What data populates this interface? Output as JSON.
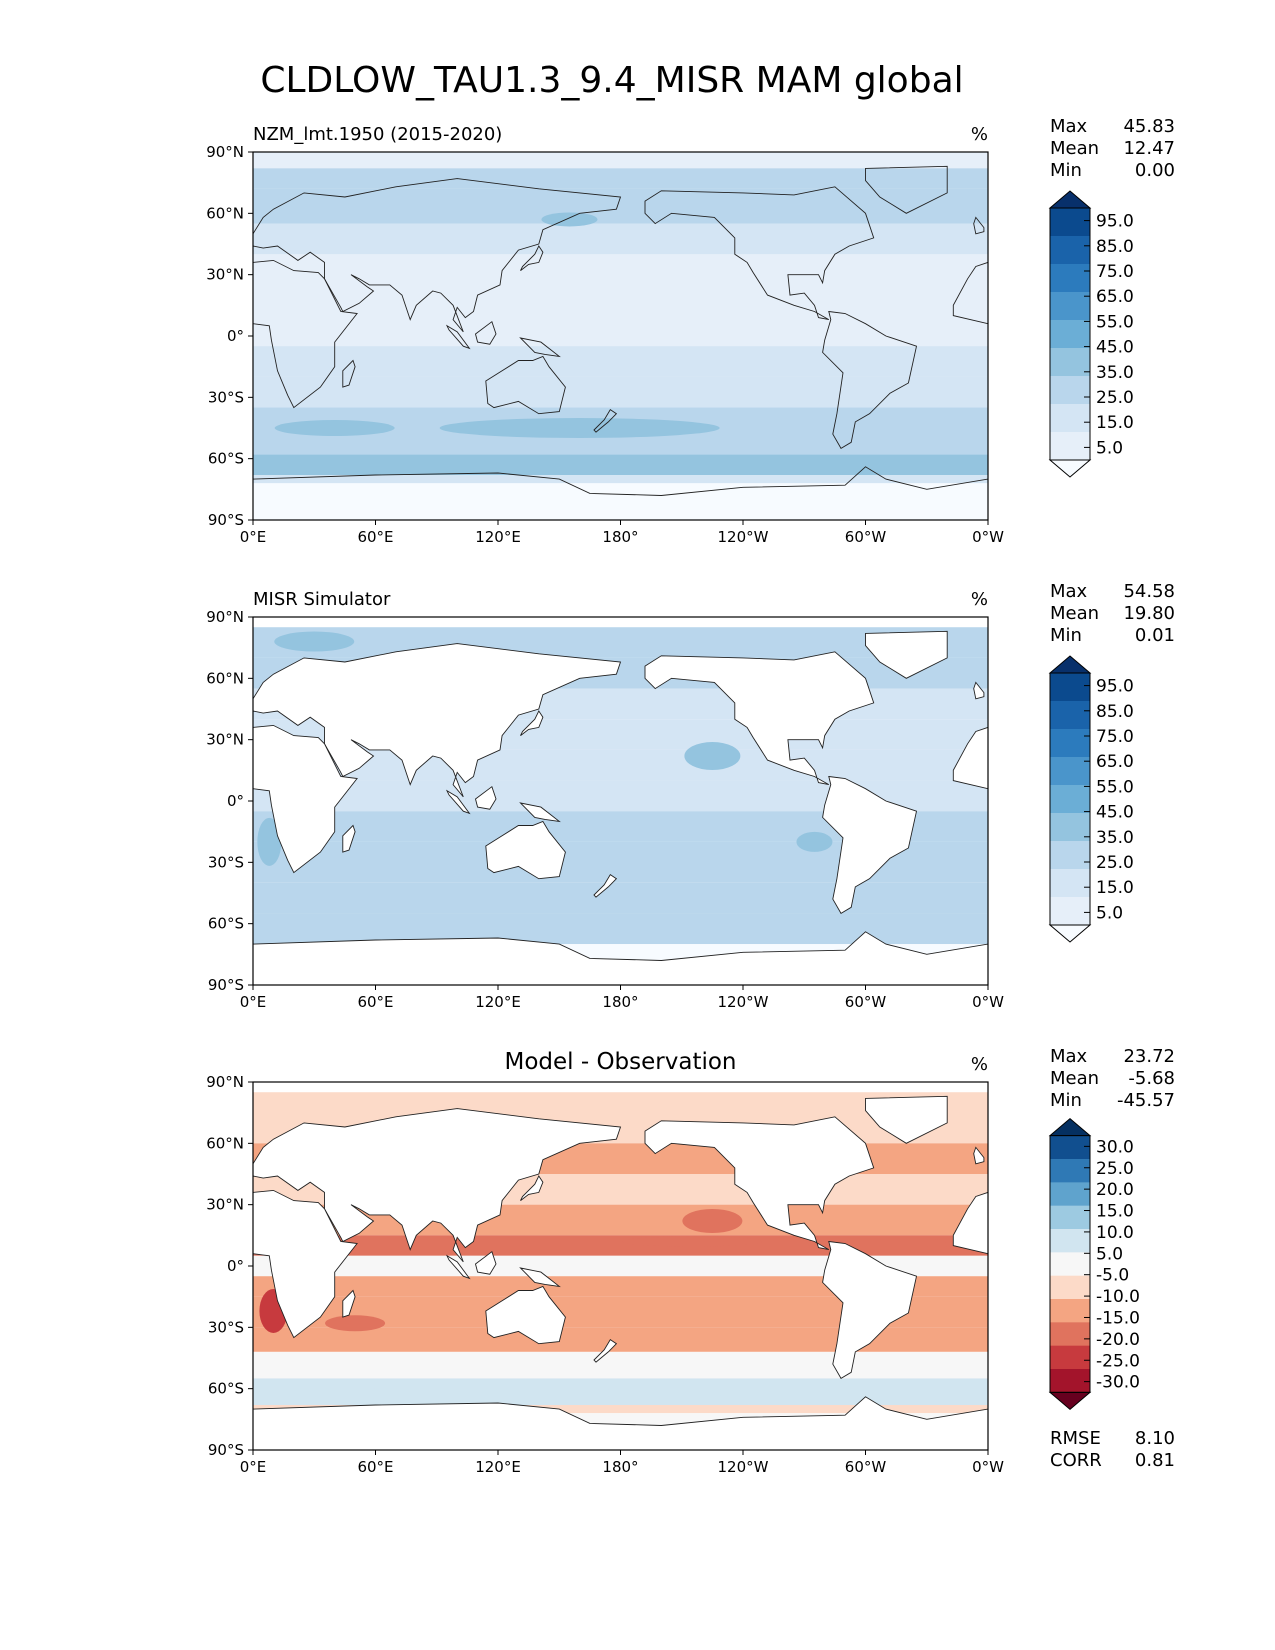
{
  "title": "CLDLOW_TAU1.3_9.4_MISR MAM global",
  "x_ticks": [
    "0°E",
    "60°E",
    "120°E",
    "180°",
    "120°W",
    "60°W",
    "0°W"
  ],
  "y_ticks": [
    "90°N",
    "60°N",
    "30°N",
    "0°",
    "30°S",
    "60°S",
    "90°S"
  ],
  "chart_data": [
    {
      "type": "heatmap",
      "title": "NZM_lmt.1950 (2015-2020)",
      "units": "%",
      "xlim": [
        0,
        360
      ],
      "ylim": [
        -90,
        90
      ],
      "stats": [
        {
          "label": "Max",
          "value": "45.83"
        },
        {
          "label": "Mean",
          "value": "12.47"
        },
        {
          "label": "Min",
          "value": "0.00"
        }
      ],
      "colorbar": {
        "levels": [
          "95.0",
          "85.0",
          "75.0",
          "65.0",
          "55.0",
          "45.0",
          "35.0",
          "25.0",
          "15.0",
          "5.0"
        ],
        "colors": [
          "#08306b",
          "#0b4a8e",
          "#1a63aa",
          "#2c7bbd",
          "#4a95cb",
          "#6baed6",
          "#94c4df",
          "#b9d6ec",
          "#d4e5f4",
          "#e6eff9",
          "#f7fbff"
        ]
      },
      "footer": []
    },
    {
      "type": "heatmap",
      "title": "MISR Simulator",
      "units": "%",
      "xlim": [
        0,
        360
      ],
      "ylim": [
        -90,
        90
      ],
      "stats": [
        {
          "label": "Max",
          "value": "54.58"
        },
        {
          "label": "Mean",
          "value": "19.80"
        },
        {
          "label": "Min",
          "value": "0.01"
        }
      ],
      "colorbar": {
        "levels": [
          "95.0",
          "85.0",
          "75.0",
          "65.0",
          "55.0",
          "45.0",
          "35.0",
          "25.0",
          "15.0",
          "5.0"
        ],
        "colors": [
          "#08306b",
          "#0b4a8e",
          "#1a63aa",
          "#2c7bbd",
          "#4a95cb",
          "#6baed6",
          "#94c4df",
          "#b9d6ec",
          "#d4e5f4",
          "#e6eff9",
          "#f7fbff"
        ]
      },
      "footer": []
    },
    {
      "type": "heatmap",
      "title": "Model - Observation",
      "units": "%",
      "xlim": [
        0,
        360
      ],
      "ylim": [
        -90,
        90
      ],
      "stats": [
        {
          "label": "Max",
          "value": "23.72"
        },
        {
          "label": "Mean",
          "value": "-5.68"
        },
        {
          "label": "Min",
          "value": "-45.57"
        }
      ],
      "colorbar": {
        "levels": [
          "30.0",
          "25.0",
          "20.0",
          "15.0",
          "10.0",
          "5.0",
          "-5.0",
          "-10.0",
          "-15.0",
          "-20.0",
          "-25.0",
          "-30.0"
        ],
        "colors": [
          "#053061",
          "#114f8f",
          "#2f79b5",
          "#5fa3cd",
          "#9dcae1",
          "#d1e5f0",
          "#f7f7f7",
          "#fcdac8",
          "#f4a582",
          "#e0735e",
          "#c73a3e",
          "#a3142b",
          "#67001f"
        ]
      },
      "footer": [
        {
          "label": "RMSE",
          "value": "8.10"
        },
        {
          "label": "CORR",
          "value": "0.81"
        }
      ]
    }
  ]
}
